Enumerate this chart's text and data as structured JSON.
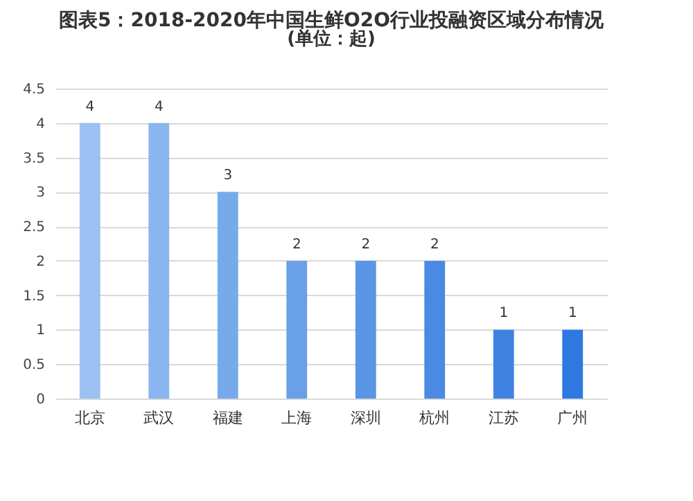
{
  "chart_data": {
    "type": "bar",
    "title": "图表5：2018-2020年中国生鲜O2O行业投融资区域分布情况",
    "subtitle": "(单位：起)",
    "categories": [
      "北京",
      "武汉",
      "福建",
      "上海",
      "深圳",
      "杭州",
      "江苏",
      "广州"
    ],
    "values": [
      4,
      4,
      3,
      2,
      2,
      2,
      1,
      1
    ],
    "colors": [
      "#9bc0f2",
      "#8ab6ef",
      "#77aaeb",
      "#6aa0e8",
      "#5a96e5",
      "#4a8ae3",
      "#3f83e2",
      "#2f78e0"
    ],
    "ylim": [
      0,
      4.5
    ],
    "yticks": [
      0,
      0.5,
      1,
      1.5,
      2,
      2.5,
      3,
      3.5,
      4,
      4.5
    ],
    "grid": "y",
    "data_labels": true
  }
}
